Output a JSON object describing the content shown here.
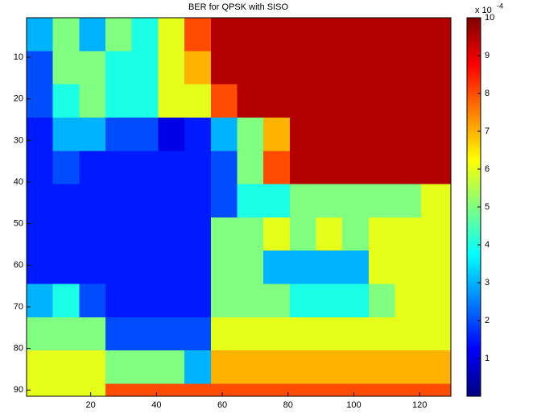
{
  "chart_data": {
    "type": "heatmap",
    "title": "BER for QPSK with SISO",
    "xbins": [
      0.5,
      8.5,
      16.5,
      24.5,
      32.5,
      40.5,
      48.5,
      56.5,
      64.5,
      72.5,
      80.5,
      88.5,
      96.5,
      104.5,
      112.5,
      120.5,
      129.5
    ],
    "ybins": [
      0.5,
      8.5,
      16.5,
      24.5,
      32.5,
      40.5,
      48.5,
      56.5,
      64.5,
      72.5,
      80.5,
      88.5,
      91.5
    ],
    "values": [
      [
        3,
        5,
        3,
        5,
        4,
        6,
        8,
        9.5,
        9.5,
        9.5,
        9.5,
        9.5,
        9.5,
        9.5,
        9.5,
        9.5
      ],
      [
        2,
        5,
        5,
        4,
        4,
        6,
        7,
        9.5,
        9.5,
        9.5,
        9.5,
        9.5,
        9.5,
        9.5,
        9.5,
        9.5
      ],
      [
        2,
        4,
        5,
        4,
        4,
        6,
        6,
        8,
        9.5,
        9.5,
        9.5,
        9.5,
        9.5,
        9.5,
        9.5,
        9.5
      ],
      [
        1.5,
        3,
        3,
        2,
        2,
        1,
        1.5,
        3,
        5,
        7,
        9.5,
        9.5,
        9.5,
        9.5,
        9.5,
        9.5
      ],
      [
        1.5,
        2,
        1.5,
        1.5,
        1.5,
        1.5,
        1.5,
        2,
        5,
        8,
        9.5,
        9.5,
        9.5,
        9.5,
        9.5,
        9.5
      ],
      [
        1.5,
        1.5,
        1.5,
        1.5,
        1.5,
        1.5,
        1.5,
        2,
        4,
        4,
        5,
        5,
        5,
        5,
        5,
        6
      ],
      [
        1.5,
        1.5,
        1.5,
        1.5,
        1.5,
        1.5,
        1.5,
        5,
        5,
        6,
        5,
        6,
        5,
        6,
        6,
        6
      ],
      [
        1.5,
        1.5,
        1.5,
        1.5,
        1.5,
        1.5,
        1.5,
        5,
        5,
        3,
        3,
        3,
        3,
        6,
        6,
        6
      ],
      [
        3,
        4,
        2,
        1.5,
        1.5,
        1.5,
        1.5,
        5,
        5,
        5,
        4,
        4,
        4,
        5,
        6,
        6
      ],
      [
        5,
        5,
        5,
        2,
        2,
        2,
        2,
        6,
        6,
        6,
        6,
        6,
        6,
        6,
        6,
        6
      ],
      [
        6,
        6,
        6,
        5,
        5,
        5,
        3,
        7,
        7,
        7,
        7,
        7,
        7,
        7,
        7,
        7
      ],
      [
        6,
        6,
        6,
        8,
        8,
        8,
        8,
        8,
        8,
        8,
        8,
        8,
        8,
        8,
        8,
        8
      ]
    ],
    "xlim": [
      0.5,
      129.5
    ],
    "ylim": [
      91.5,
      0.5
    ],
    "xticks": [
      20,
      40,
      60,
      80,
      100,
      120
    ],
    "yticks": [
      10,
      20,
      30,
      40,
      50,
      60,
      70,
      80,
      90
    ],
    "clim": [
      0,
      10
    ],
    "cticks": [
      1,
      2,
      3,
      4,
      5,
      6,
      7,
      8,
      9,
      10
    ],
    "colormap": "jet",
    "colorbar_multiplier": "x 10",
    "colorbar_exponent": "-4"
  }
}
